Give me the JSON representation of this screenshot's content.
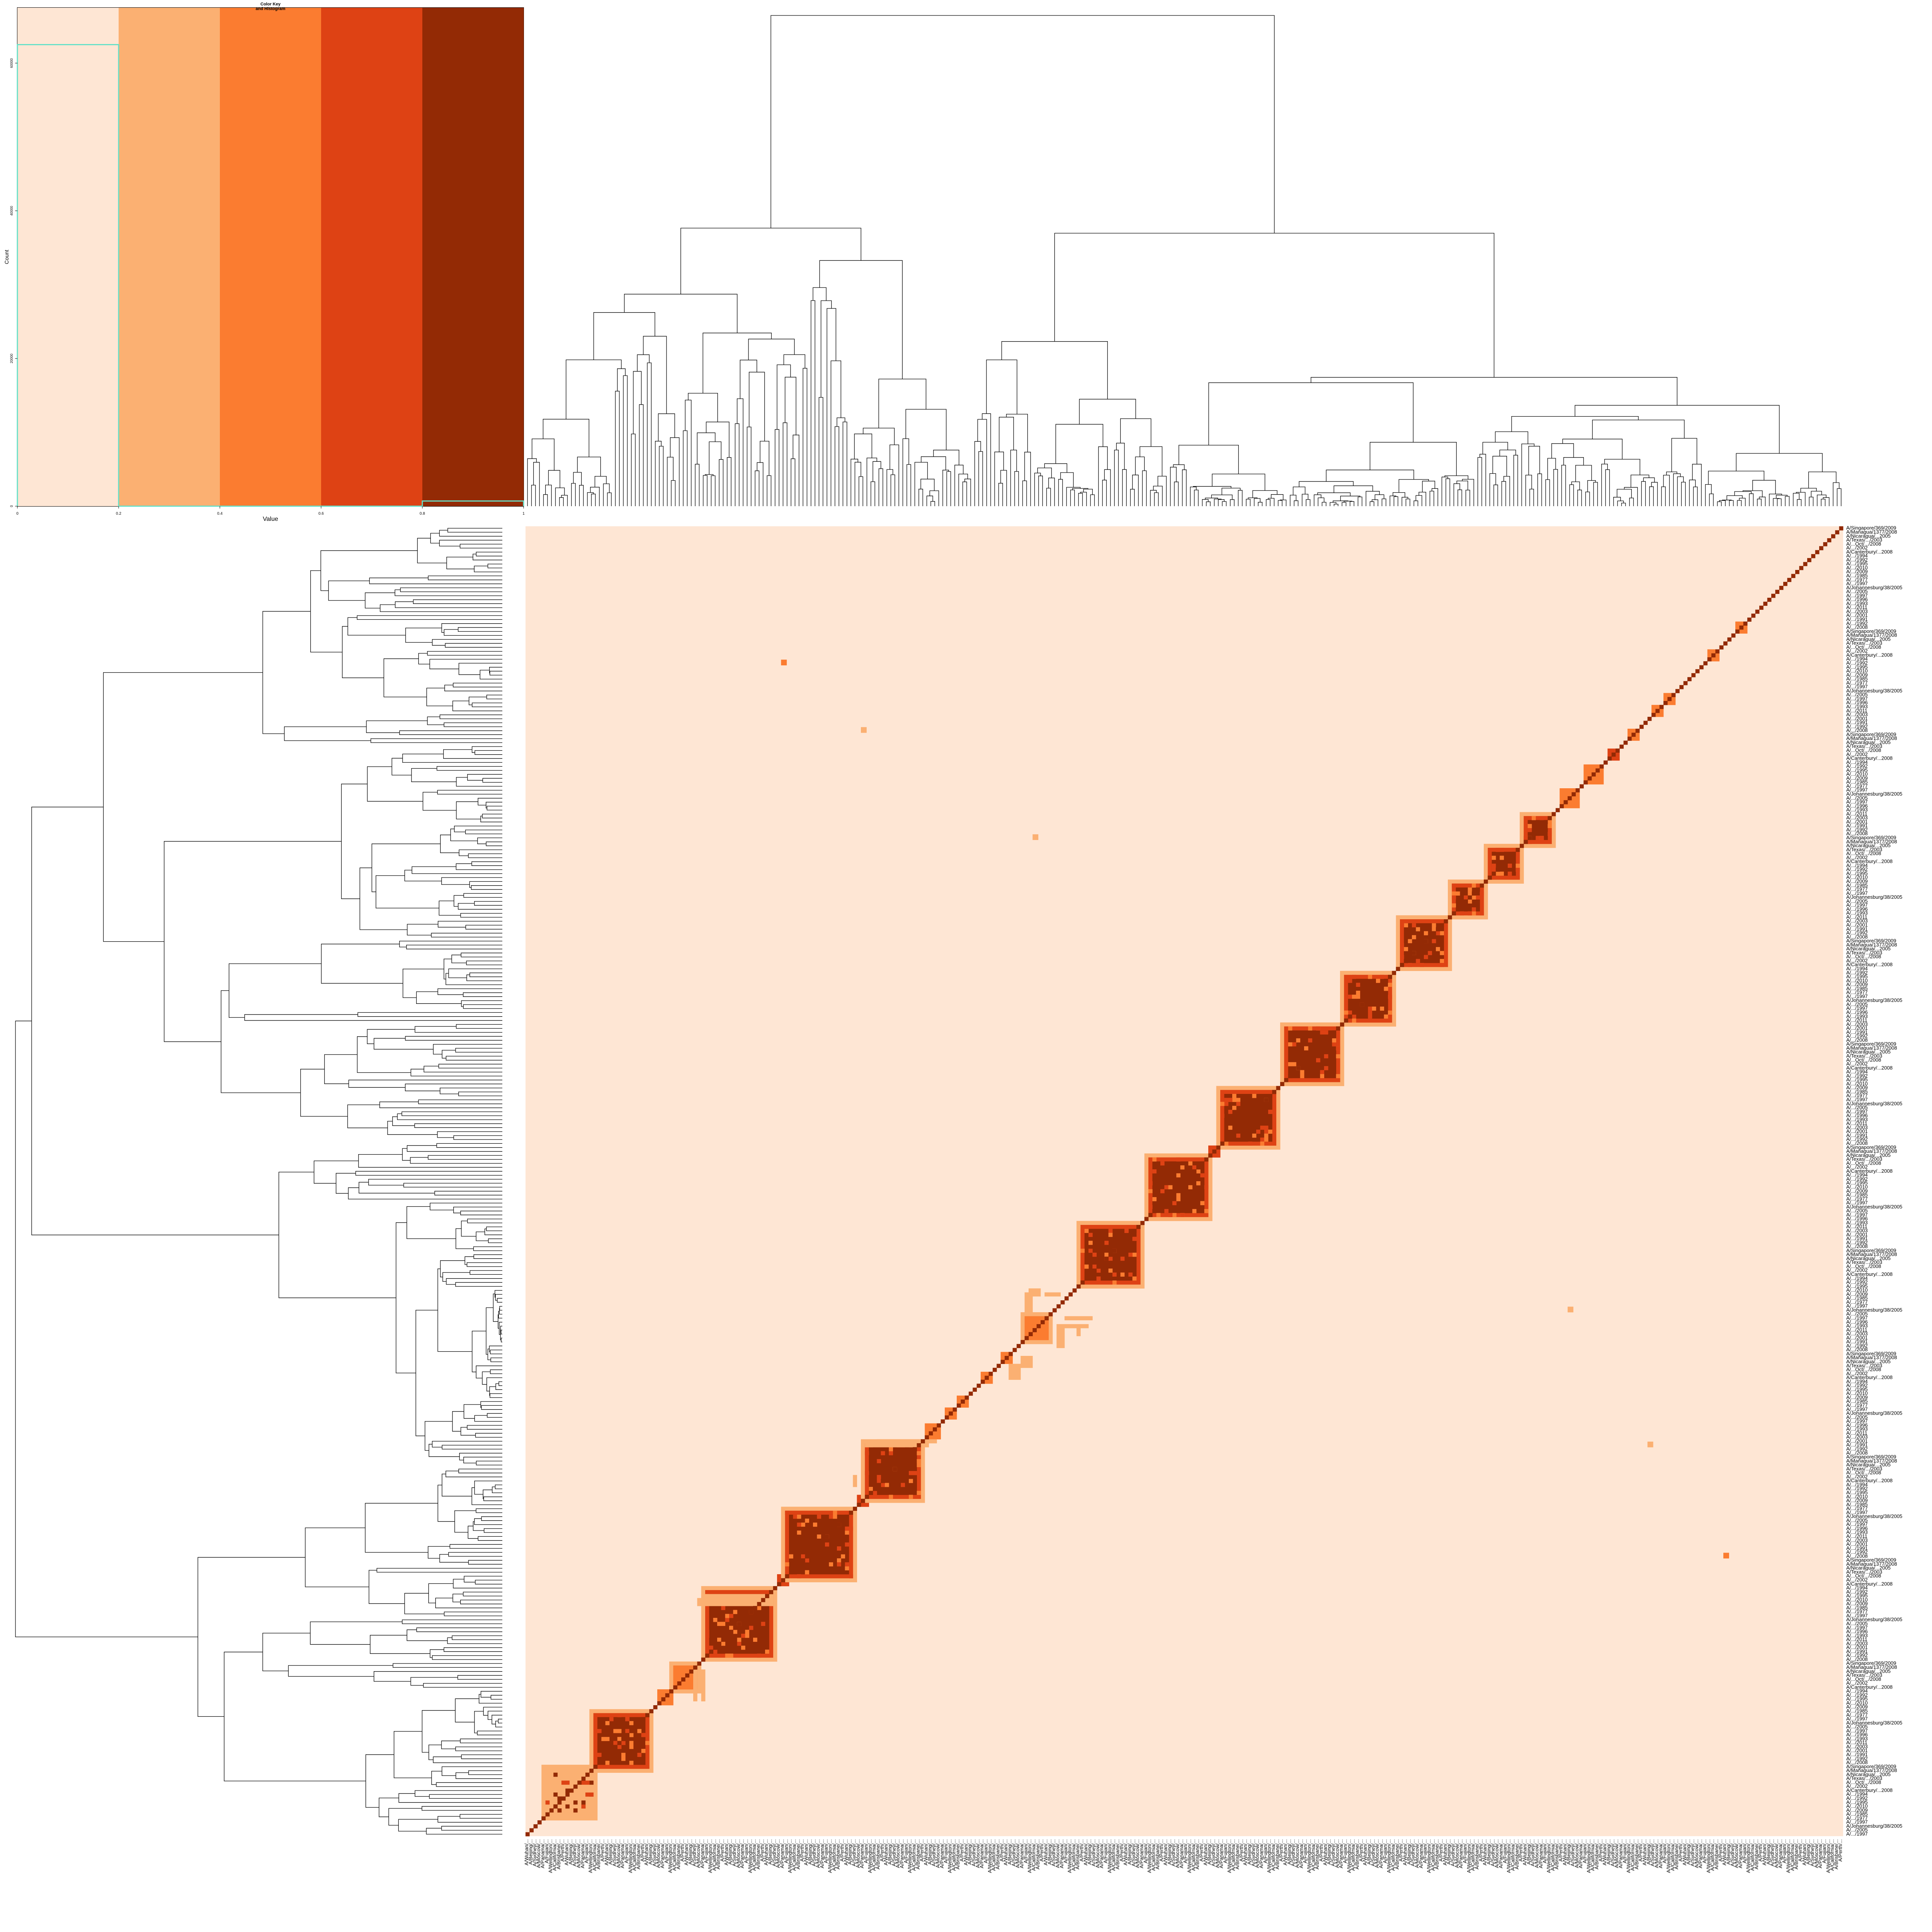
{
  "chart_data": {
    "type": "heatmap",
    "color_key": {
      "title_line1": "Color Key",
      "title_line2": "and Histogram",
      "xlabel": "Value",
      "ylabel": "Count",
      "x_ticks": [
        "0",
        "0.2",
        "0.4",
        "0.6",
        "0.8",
        "1"
      ],
      "y_ticks": [
        "0",
        "20000",
        "40000",
        "60000"
      ],
      "bins": [
        0,
        0.2,
        0.4,
        0.6,
        0.8,
        1.0
      ],
      "colors": [
        "#fee6d4",
        "#fbb072",
        "#fb7c30",
        "#de4214",
        "#932a05"
      ],
      "hist_trace_color": "#66e0c8",
      "histogram_counts_estimate": {
        "0-0.2": 62500,
        "0.8-1.0": 700
      }
    },
    "heatmap": {
      "n_rows": 330,
      "n_cols": 330,
      "value_range": [
        0,
        1
      ],
      "background_value_bin": "0-0.2",
      "diagonal_value_bin": "0.8-1.0",
      "blocks_description": "Block-diagonal clusters along the main diagonal (low rows/left to high rows/right).",
      "clusters": [
        {
          "start": 5,
          "size": 12,
          "level": 2
        },
        {
          "start": 17,
          "size": 14,
          "level": 4
        },
        {
          "start": 33,
          "size": 4,
          "level": 3
        },
        {
          "start": 37,
          "size": 6,
          "level": 3
        },
        {
          "start": 45,
          "size": 17,
          "level": 4
        },
        {
          "start": 63,
          "size": 3,
          "level": 4
        },
        {
          "start": 65,
          "size": 17,
          "level": 4
        },
        {
          "start": 83,
          "size": 3,
          "level": 4
        },
        {
          "start": 85,
          "size": 14,
          "level": 4
        },
        {
          "start": 100,
          "size": 4,
          "level": 3
        },
        {
          "start": 105,
          "size": 3,
          "level": 3
        },
        {
          "start": 108,
          "size": 3,
          "level": 3
        },
        {
          "start": 114,
          "size": 3,
          "level": 3
        },
        {
          "start": 119,
          "size": 3,
          "level": 3
        },
        {
          "start": 125,
          "size": 6,
          "level": 3
        },
        {
          "start": 139,
          "size": 15,
          "level": 4
        },
        {
          "start": 156,
          "size": 15,
          "level": 4
        },
        {
          "start": 171,
          "size": 3,
          "level": 4
        },
        {
          "start": 174,
          "size": 14,
          "level": 4
        },
        {
          "start": 190,
          "size": 14,
          "level": 4
        },
        {
          "start": 205,
          "size": 12,
          "level": 4
        },
        {
          "start": 219,
          "size": 12,
          "level": 4
        },
        {
          "start": 232,
          "size": 8,
          "level": 4
        },
        {
          "start": 241,
          "size": 8,
          "level": 4
        },
        {
          "start": 250,
          "size": 7,
          "level": 4
        },
        {
          "start": 259,
          "size": 5,
          "level": 3
        },
        {
          "start": 265,
          "size": 5,
          "level": 3
        },
        {
          "start": 271,
          "size": 3,
          "level": 4
        },
        {
          "start": 276,
          "size": 3,
          "level": 3
        },
        {
          "start": 282,
          "size": 3,
          "level": 3
        },
        {
          "start": 285,
          "size": 3,
          "level": 3
        },
        {
          "start": 296,
          "size": 3,
          "level": 3
        },
        {
          "start": 303,
          "size": 3,
          "level": 3
        }
      ]
    },
    "row_labels_visible": [
      "A/Singapore/369/2009",
      "A/Managua/1377/2008",
      "A/Nicaragua/...2005",
      "A/Texas/.../2003",
      "A/...Oct/.../2008",
      "A/.../2002",
      "A/Canterbury/...2008",
      "A/.../1994",
      "A/.../1992",
      "A/.../1995",
      "A/.../2010",
      "A/.../2009",
      "A/.../1985",
      "A/.../1977",
      "A/.../1997",
      "A/Johannesburg/38/2005",
      "A/.../2005",
      "A/.../1997",
      "A/.../1996",
      "A/.../1993",
      "A/.../2011",
      "A/.../2003",
      "A/.../2001",
      "A/.../1991",
      "A/.../1992",
      "A/.../2008"
    ],
    "col_labels_visible": [
      "A/Wuhan/...",
      "A/Beijing/...",
      "A/Sydney/...",
      "A/Moscow/...",
      "A/Panama/...",
      "A/Fujian/...",
      "A/Wellington/...",
      "A/California/...",
      "A/Brisbane/...",
      "A/Perth/..."
    ]
  }
}
